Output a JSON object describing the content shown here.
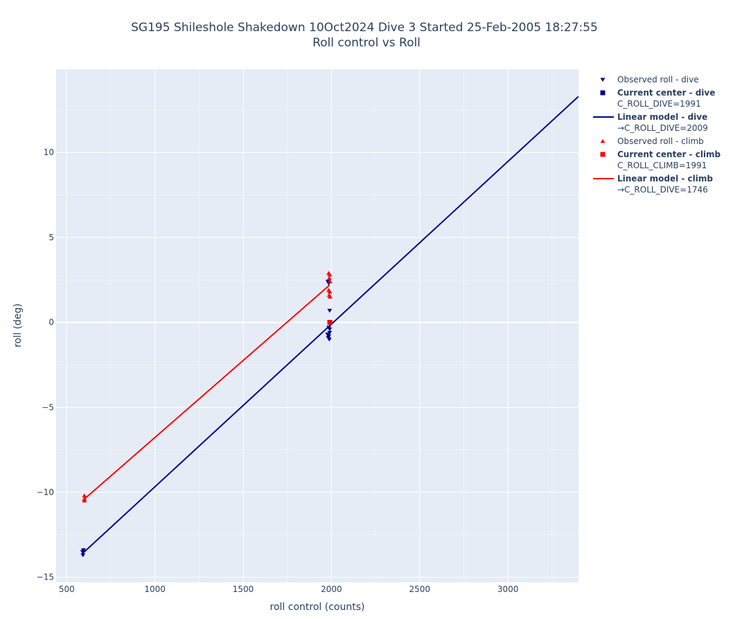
{
  "chart_data": {
    "type": "scatter",
    "title_line1": "SG195 Shileshole Shakedown 10Oct2024 Dive 3 Started 25-Feb-2005 18:27:55",
    "title_line2": "Roll control vs Roll",
    "xlabel": "roll control (counts)",
    "ylabel": "roll (deg)",
    "xlim": [
      440,
      3400
    ],
    "ylim": [
      -15.3,
      14.9
    ],
    "x_ticks": [
      500,
      1000,
      1500,
      2000,
      2500,
      3000
    ],
    "y_ticks": [
      -15,
      -10,
      -5,
      0,
      5,
      10
    ],
    "y_tick_labels": [
      "−15",
      "−10",
      "−5",
      "0",
      "5",
      "10"
    ],
    "grid": true,
    "legend_position": "right",
    "series": [
      {
        "name": "Observed roll - dive",
        "kind": "scatter",
        "marker": "triangle-down",
        "color": "#00008b",
        "points": [
          [
            590,
            -13.5
          ],
          [
            592,
            -13.7
          ],
          [
            595,
            -13.4
          ],
          [
            1980,
            2.4
          ],
          [
            1985,
            2.3
          ],
          [
            1990,
            0.7
          ],
          [
            1985,
            -0.3
          ],
          [
            1990,
            -0.4
          ],
          [
            1978,
            -0.7
          ],
          [
            1985,
            -0.8
          ],
          [
            1990,
            -0.6
          ],
          [
            1982,
            -0.9
          ],
          [
            1988,
            -1.0
          ]
        ]
      },
      {
        "name": "Current center - dive",
        "sub": "C_ROLL_DIVE=1991",
        "kind": "point",
        "marker": "square",
        "color": "#00008b",
        "points": [
          [
            1991,
            0
          ]
        ]
      },
      {
        "name": "Linear model - dive",
        "sub": "→C_ROLL_DIVE=2009",
        "kind": "line",
        "color": "#00008b",
        "points": [
          [
            590,
            -13.6
          ],
          [
            3400,
            13.3
          ]
        ]
      },
      {
        "name": "Observed roll - climb",
        "kind": "scatter",
        "marker": "triangle-up",
        "color": "#ff0000",
        "points": [
          [
            600,
            -10.2
          ],
          [
            600,
            -10.4
          ],
          [
            600,
            -10.5
          ],
          [
            1985,
            2.9
          ],
          [
            1990,
            2.8
          ],
          [
            1988,
            2.6
          ],
          [
            1992,
            2.4
          ],
          [
            1985,
            1.9
          ],
          [
            1990,
            1.8
          ],
          [
            1988,
            1.6
          ],
          [
            1992,
            1.5
          ]
        ]
      },
      {
        "name": "Current center - climb",
        "sub": "C_ROLL_CLIMB=1991",
        "kind": "point",
        "marker": "square",
        "color": "#ff0000",
        "points": [
          [
            1991,
            0
          ]
        ]
      },
      {
        "name": "Linear model - climb",
        "sub": "→C_ROLL_DIVE=1746",
        "kind": "line",
        "color": "#ff0000",
        "points": [
          [
            600,
            -10.4
          ],
          [
            1990,
            2.2
          ]
        ]
      }
    ]
  }
}
